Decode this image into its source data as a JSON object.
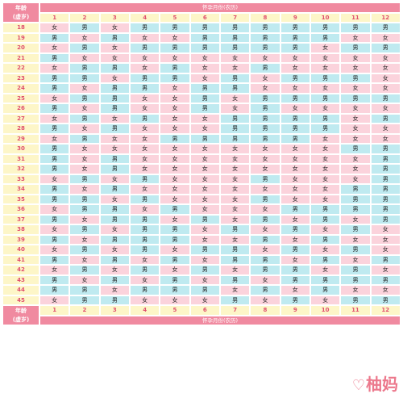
{
  "header": {
    "corner_line1": "年龄",
    "corner_line2": "(虚岁)",
    "title": "怀孕月份(农历)"
  },
  "months": [
    "1",
    "2",
    "3",
    "4",
    "5",
    "6",
    "7",
    "8",
    "9",
    "10",
    "11",
    "12"
  ],
  "colors": {
    "girl": "#fbd3dc",
    "boy": "#bfeaf0",
    "header": "#f08aa0",
    "label": "#fdf6c8",
    "label_text": "#e0506e"
  },
  "rows": [
    {
      "age": "18",
      "cells": [
        "女",
        "男",
        "女",
        "男",
        "男",
        "男",
        "男",
        "男",
        "男",
        "男",
        "男",
        "男"
      ]
    },
    {
      "age": "19",
      "cells": [
        "男",
        "女",
        "男",
        "女",
        "女",
        "男",
        "男",
        "男",
        "男",
        "男",
        "女",
        "女"
      ]
    },
    {
      "age": "20",
      "cells": [
        "女",
        "男",
        "女",
        "男",
        "男",
        "男",
        "男",
        "男",
        "男",
        "女",
        "男",
        "男"
      ]
    },
    {
      "age": "21",
      "cells": [
        "男",
        "女",
        "女",
        "女",
        "女",
        "女",
        "女",
        "女",
        "女",
        "女",
        "女",
        "女"
      ]
    },
    {
      "age": "22",
      "cells": [
        "女",
        "男",
        "男",
        "女",
        "男",
        "女",
        "女",
        "男",
        "女",
        "女",
        "女",
        "女"
      ]
    },
    {
      "age": "23",
      "cells": [
        "男",
        "男",
        "女",
        "男",
        "男",
        "女",
        "男",
        "女",
        "男",
        "男",
        "男",
        "女"
      ]
    },
    {
      "age": "24",
      "cells": [
        "男",
        "女",
        "男",
        "男",
        "女",
        "男",
        "男",
        "女",
        "女",
        "女",
        "女",
        "女"
      ]
    },
    {
      "age": "25",
      "cells": [
        "女",
        "男",
        "男",
        "女",
        "女",
        "男",
        "女",
        "男",
        "男",
        "男",
        "男",
        "男"
      ]
    },
    {
      "age": "26",
      "cells": [
        "男",
        "女",
        "男",
        "女",
        "女",
        "男",
        "女",
        "男",
        "女",
        "女",
        "女",
        "女"
      ]
    },
    {
      "age": "27",
      "cells": [
        "女",
        "男",
        "女",
        "男",
        "女",
        "女",
        "男",
        "男",
        "男",
        "男",
        "女",
        "男"
      ]
    },
    {
      "age": "28",
      "cells": [
        "男",
        "女",
        "男",
        "女",
        "女",
        "女",
        "男",
        "男",
        "男",
        "男",
        "女",
        "女"
      ]
    },
    {
      "age": "29",
      "cells": [
        "女",
        "男",
        "女",
        "女",
        "男",
        "男",
        "男",
        "男",
        "男",
        "女",
        "女",
        "女"
      ]
    },
    {
      "age": "30",
      "cells": [
        "男",
        "女",
        "女",
        "女",
        "女",
        "女",
        "女",
        "女",
        "女",
        "女",
        "男",
        "男"
      ]
    },
    {
      "age": "31",
      "cells": [
        "男",
        "女",
        "男",
        "女",
        "女",
        "女",
        "女",
        "女",
        "女",
        "女",
        "女",
        "男"
      ]
    },
    {
      "age": "32",
      "cells": [
        "男",
        "女",
        "男",
        "女",
        "女",
        "女",
        "女",
        "女",
        "女",
        "女",
        "女",
        "男"
      ]
    },
    {
      "age": "33",
      "cells": [
        "女",
        "男",
        "女",
        "男",
        "女",
        "女",
        "女",
        "男",
        "女",
        "女",
        "女",
        "男"
      ]
    },
    {
      "age": "34",
      "cells": [
        "男",
        "女",
        "男",
        "女",
        "女",
        "女",
        "女",
        "女",
        "女",
        "女",
        "男",
        "男"
      ]
    },
    {
      "age": "35",
      "cells": [
        "男",
        "男",
        "女",
        "男",
        "女",
        "女",
        "女",
        "男",
        "女",
        "女",
        "男",
        "男"
      ]
    },
    {
      "age": "36",
      "cells": [
        "女",
        "男",
        "男",
        "女",
        "男",
        "女",
        "女",
        "女",
        "男",
        "男",
        "男",
        "男"
      ]
    },
    {
      "age": "37",
      "cells": [
        "男",
        "女",
        "男",
        "男",
        "女",
        "男",
        "女",
        "男",
        "女",
        "男",
        "女",
        "男"
      ]
    },
    {
      "age": "38",
      "cells": [
        "女",
        "男",
        "女",
        "男",
        "男",
        "女",
        "男",
        "女",
        "男",
        "女",
        "男",
        "女"
      ]
    },
    {
      "age": "39",
      "cells": [
        "男",
        "女",
        "男",
        "男",
        "男",
        "女",
        "女",
        "男",
        "女",
        "男",
        "女",
        "女"
      ]
    },
    {
      "age": "40",
      "cells": [
        "女",
        "男",
        "女",
        "男",
        "女",
        "男",
        "男",
        "女",
        "男",
        "女",
        "男",
        "女"
      ]
    },
    {
      "age": "41",
      "cells": [
        "男",
        "女",
        "男",
        "女",
        "男",
        "女",
        "男",
        "男",
        "女",
        "男",
        "女",
        "男"
      ]
    },
    {
      "age": "42",
      "cells": [
        "女",
        "男",
        "女",
        "男",
        "女",
        "男",
        "女",
        "男",
        "男",
        "女",
        "男",
        "女"
      ]
    },
    {
      "age": "43",
      "cells": [
        "男",
        "女",
        "男",
        "女",
        "男",
        "女",
        "男",
        "女",
        "男",
        "男",
        "男",
        "男"
      ]
    },
    {
      "age": "44",
      "cells": [
        "男",
        "男",
        "女",
        "男",
        "男",
        "男",
        "女",
        "男",
        "女",
        "男",
        "女",
        "女"
      ]
    },
    {
      "age": "45",
      "cells": [
        "女",
        "男",
        "男",
        "女",
        "女",
        "女",
        "男",
        "女",
        "男",
        "女",
        "男",
        "男"
      ]
    }
  ],
  "footer": {
    "corner_line1": "年龄",
    "corner_line2": "(虚岁)",
    "title": "怀孕月份(农历)"
  },
  "watermark": {
    "heart_icon": "heart-icon",
    "text": "柚妈"
  }
}
